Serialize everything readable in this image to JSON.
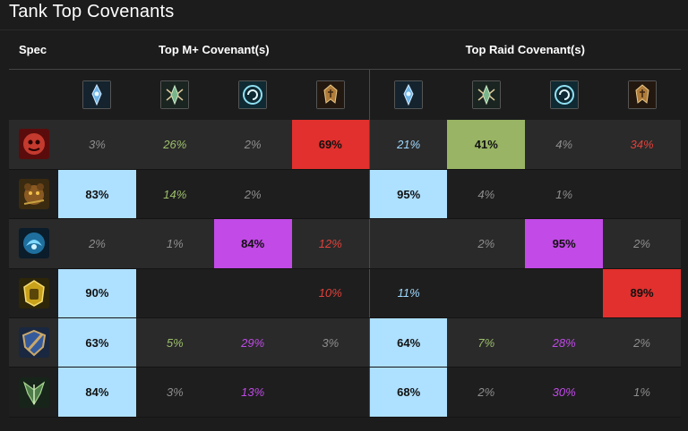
{
  "page": {
    "title": "Tank Top Covenants"
  },
  "header": {
    "spec_label": "Spec",
    "mplus_label": "Top M+ Covenant(s)",
    "raid_label": "Top Raid Covenant(s)"
  },
  "covenants": [
    {
      "icon": "kyrian-icon",
      "color": "#5fa3d8"
    },
    {
      "icon": "night-fae-icon",
      "color": "#7fb77e"
    },
    {
      "icon": "necrolord-icon",
      "color": "#4fa9c9"
    },
    {
      "icon": "venthyr-icon",
      "color": "#b58a3c"
    }
  ],
  "colors": {
    "blue_fill": "#aee0ff",
    "green_fill": "#98b464",
    "red_fill": "#e1302d",
    "purple_fill": "#c24ae6",
    "blue_text": "#9fd8ff",
    "green_text": "#9dbf6b",
    "red_text": "#e0413b",
    "purple_text": "#c04ae8",
    "gray_text": "#8e8e8e"
  },
  "rows": [
    {
      "spec_icon": "death-knight-blood-icon",
      "mplus": [
        "3%",
        "26%",
        "2%",
        "69%"
      ],
      "raid": [
        "21%",
        "41%",
        "4%",
        "34%"
      ]
    },
    {
      "spec_icon": "druid-guardian-icon",
      "mplus": [
        "83%",
        "14%",
        "2%",
        ""
      ],
      "raid": [
        "95%",
        "4%",
        "1%",
        ""
      ]
    },
    {
      "spec_icon": "demon-hunter-vengeance-icon",
      "mplus": [
        "2%",
        "1%",
        "84%",
        "12%"
      ],
      "raid": [
        "",
        "2%",
        "95%",
        "2%"
      ]
    },
    {
      "spec_icon": "monk-brewmaster-icon",
      "mplus": [
        "90%",
        "",
        "",
        "10%"
      ],
      "raid": [
        "11%",
        "",
        "",
        "89%"
      ]
    },
    {
      "spec_icon": "paladin-protection-icon",
      "mplus": [
        "63%",
        "5%",
        "29%",
        "3%"
      ],
      "raid": [
        "64%",
        "7%",
        "28%",
        "2%"
      ]
    },
    {
      "spec_icon": "warrior-protection-icon",
      "mplus": [
        "84%",
        "3%",
        "13%",
        ""
      ],
      "raid": [
        "68%",
        "2%",
        "30%",
        "1%"
      ]
    }
  ]
}
